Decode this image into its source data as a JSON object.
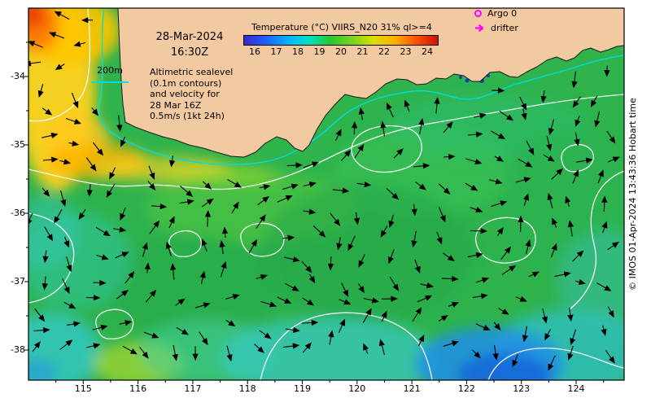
{
  "header": {
    "date": "28-Mar-2024",
    "time": "16:30Z"
  },
  "colorbar": {
    "title": "Temperature (°C) VIIRS_N20 31% ql>=4",
    "ticks": [
      16,
      17,
      18,
      19,
      20,
      21,
      22,
      23,
      24
    ],
    "gradient": [
      "#3a28c8",
      "#2060ff",
      "#00b0ff",
      "#00e0c8",
      "#28c828",
      "#78d41e",
      "#d8e000",
      "#ffb000",
      "#ff5000",
      "#c81400"
    ]
  },
  "legend": {
    "argo_label": "Argo 0",
    "drifter_label": "drifter",
    "marker_color": "#ff00ff"
  },
  "annotation": {
    "isobath_label": "200m",
    "isobath_color": "#00dede",
    "lines": [
      "Altimetric sealevel",
      "(0.1m contours)",
      "and velocity for",
      "28 Mar 16Z",
      "0.5m/s (1kt 24h)"
    ]
  },
  "axes": {
    "lon_ticks": [
      115,
      116,
      117,
      118,
      119,
      120,
      121,
      122,
      123,
      124
    ],
    "lat_ticks": [
      -34,
      -35,
      -36,
      -37,
      -38
    ]
  },
  "credit": "© IMOS 01-Apr-2024 13:43:36 Hobart time",
  "colors": {
    "land": "#f3c9a2",
    "ocean_base": "#2eb34d",
    "contour": "#fafafa"
  }
}
